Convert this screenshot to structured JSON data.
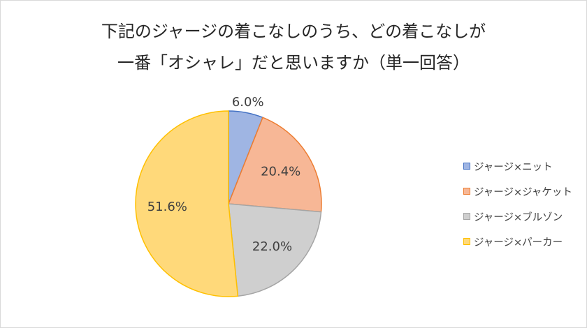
{
  "chart_data": {
    "type": "pie",
    "title": [
      "下記のジャージの着こなしのうち、どの着こなしが",
      "一番「オシャレ」だと思いますか（単一回答）"
    ],
    "categories": [
      "ジャージ×ニット",
      "ジャージ×ジャケット",
      "ジャージ×ブルゾン",
      "ジャージ×パーカー"
    ],
    "values": [
      6.0,
      20.4,
      22.0,
      51.6
    ],
    "data_labels": [
      "6.0%",
      "20.4%",
      "22.0%",
      "51.6%"
    ],
    "legend_position": "right",
    "colors": [
      {
        "fill": "#9FB5E3",
        "stroke": "#4472C4"
      },
      {
        "fill": "#F7B796",
        "stroke": "#ED7D31"
      },
      {
        "fill": "#CFCFCF",
        "stroke": "#A5A5A5"
      },
      {
        "fill": "#FFD97A",
        "stroke": "#FFC000"
      }
    ]
  }
}
